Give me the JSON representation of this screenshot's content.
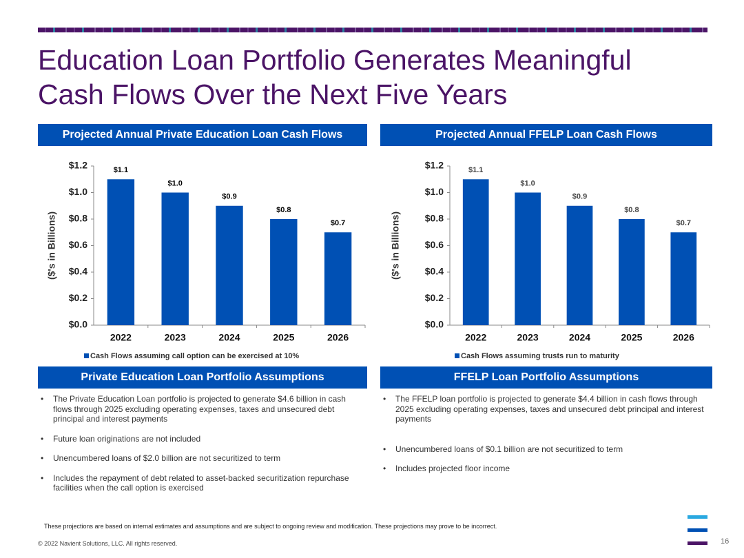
{
  "title": "Education Loan Portfolio Generates Meaningful Cash Flows Over the Next Five Years",
  "chart_data": [
    {
      "type": "bar",
      "title": "Projected Annual Private Education Loan Cash Flows",
      "y_label": "($'s in Billions)",
      "categories": [
        "2022",
        "2023",
        "2024",
        "2025",
        "2026"
      ],
      "series": [
        {
          "name": "Cash Flows assuming call option can be exercised at 10%",
          "color": "#0050b4",
          "values": [
            1.1,
            1.0,
            0.9,
            0.8,
            0.7
          ],
          "value_labels": [
            "$1.1",
            "$1.0",
            "$0.9",
            "$0.8",
            "$0.7"
          ]
        }
      ],
      "ylim": [
        0,
        1.2
      ],
      "yticks": [
        {
          "value": 0,
          "label": "$0.0"
        },
        {
          "value": 0.2,
          "label": "$0.2"
        },
        {
          "value": 0.4,
          "label": "$0.4"
        },
        {
          "value": 0.6,
          "label": "$0.6"
        },
        {
          "value": 0.8,
          "label": "$0.8"
        },
        {
          "value": 1.0,
          "label": "$1.0"
        },
        {
          "value": 1.2,
          "label": "$1.2"
        }
      ],
      "grid": false
    },
    {
      "type": "bar",
      "title": "Projected Annual FFELP Loan Cash Flows",
      "y_label": "($'s in Billions)",
      "categories": [
        "2022",
        "2023",
        "2024",
        "2025",
        "2026"
      ],
      "series": [
        {
          "name": "Cash Flows assuming trusts run to maturity",
          "color": "#0050b4",
          "values": [
            1.1,
            1.0,
            0.9,
            0.8,
            0.7
          ],
          "value_labels": [
            "$1.1",
            "$1.0",
            "$0.9",
            "$0.8",
            "$0.7"
          ]
        }
      ],
      "ylim": [
        0,
        1.2
      ],
      "yticks": [
        {
          "value": 0,
          "label": "$0.0"
        },
        {
          "value": 0.2,
          "label": "$0.2"
        },
        {
          "value": 0.4,
          "label": "$0.4"
        },
        {
          "value": 0.6,
          "label": "$0.6"
        },
        {
          "value": 0.8,
          "label": "$0.8"
        },
        {
          "value": 1.0,
          "label": "$1.0"
        },
        {
          "value": 1.2,
          "label": "$1.2"
        }
      ],
      "grid": false
    }
  ],
  "assumptions": [
    {
      "title": "Private Education Loan Portfolio Assumptions",
      "bullets": [
        "The Private Education Loan portfolio is projected to generate $4.6 billion in cash flows through 2025 excluding operating expenses, taxes and unsecured debt principal and interest payments",
        "Future loan originations are not included",
        "Unencumbered loans of $2.0 billion are not securitized to term",
        "Includes the repayment of debt related to asset-backed securitization repurchase facilities when the call option is exercised"
      ]
    },
    {
      "title": "FFELP Loan Portfolio Assumptions",
      "bullets": [
        "The FFELP loan portfolio is projected to generate $4.4 billion in cash flows through 2025 excluding operating expenses, taxes and unsecured debt principal and interest payments",
        "Unencumbered loans of $0.1 billion are not securitized to term",
        "Includes projected floor income"
      ]
    }
  ],
  "footnote": "These projections are based on internal estimates and assumptions and are subject to ongoing review and modification. These projections may prove to be incorrect.",
  "copyright": "© 2022 Navient Solutions, LLC. All rights reserved.",
  "page_number": "16"
}
